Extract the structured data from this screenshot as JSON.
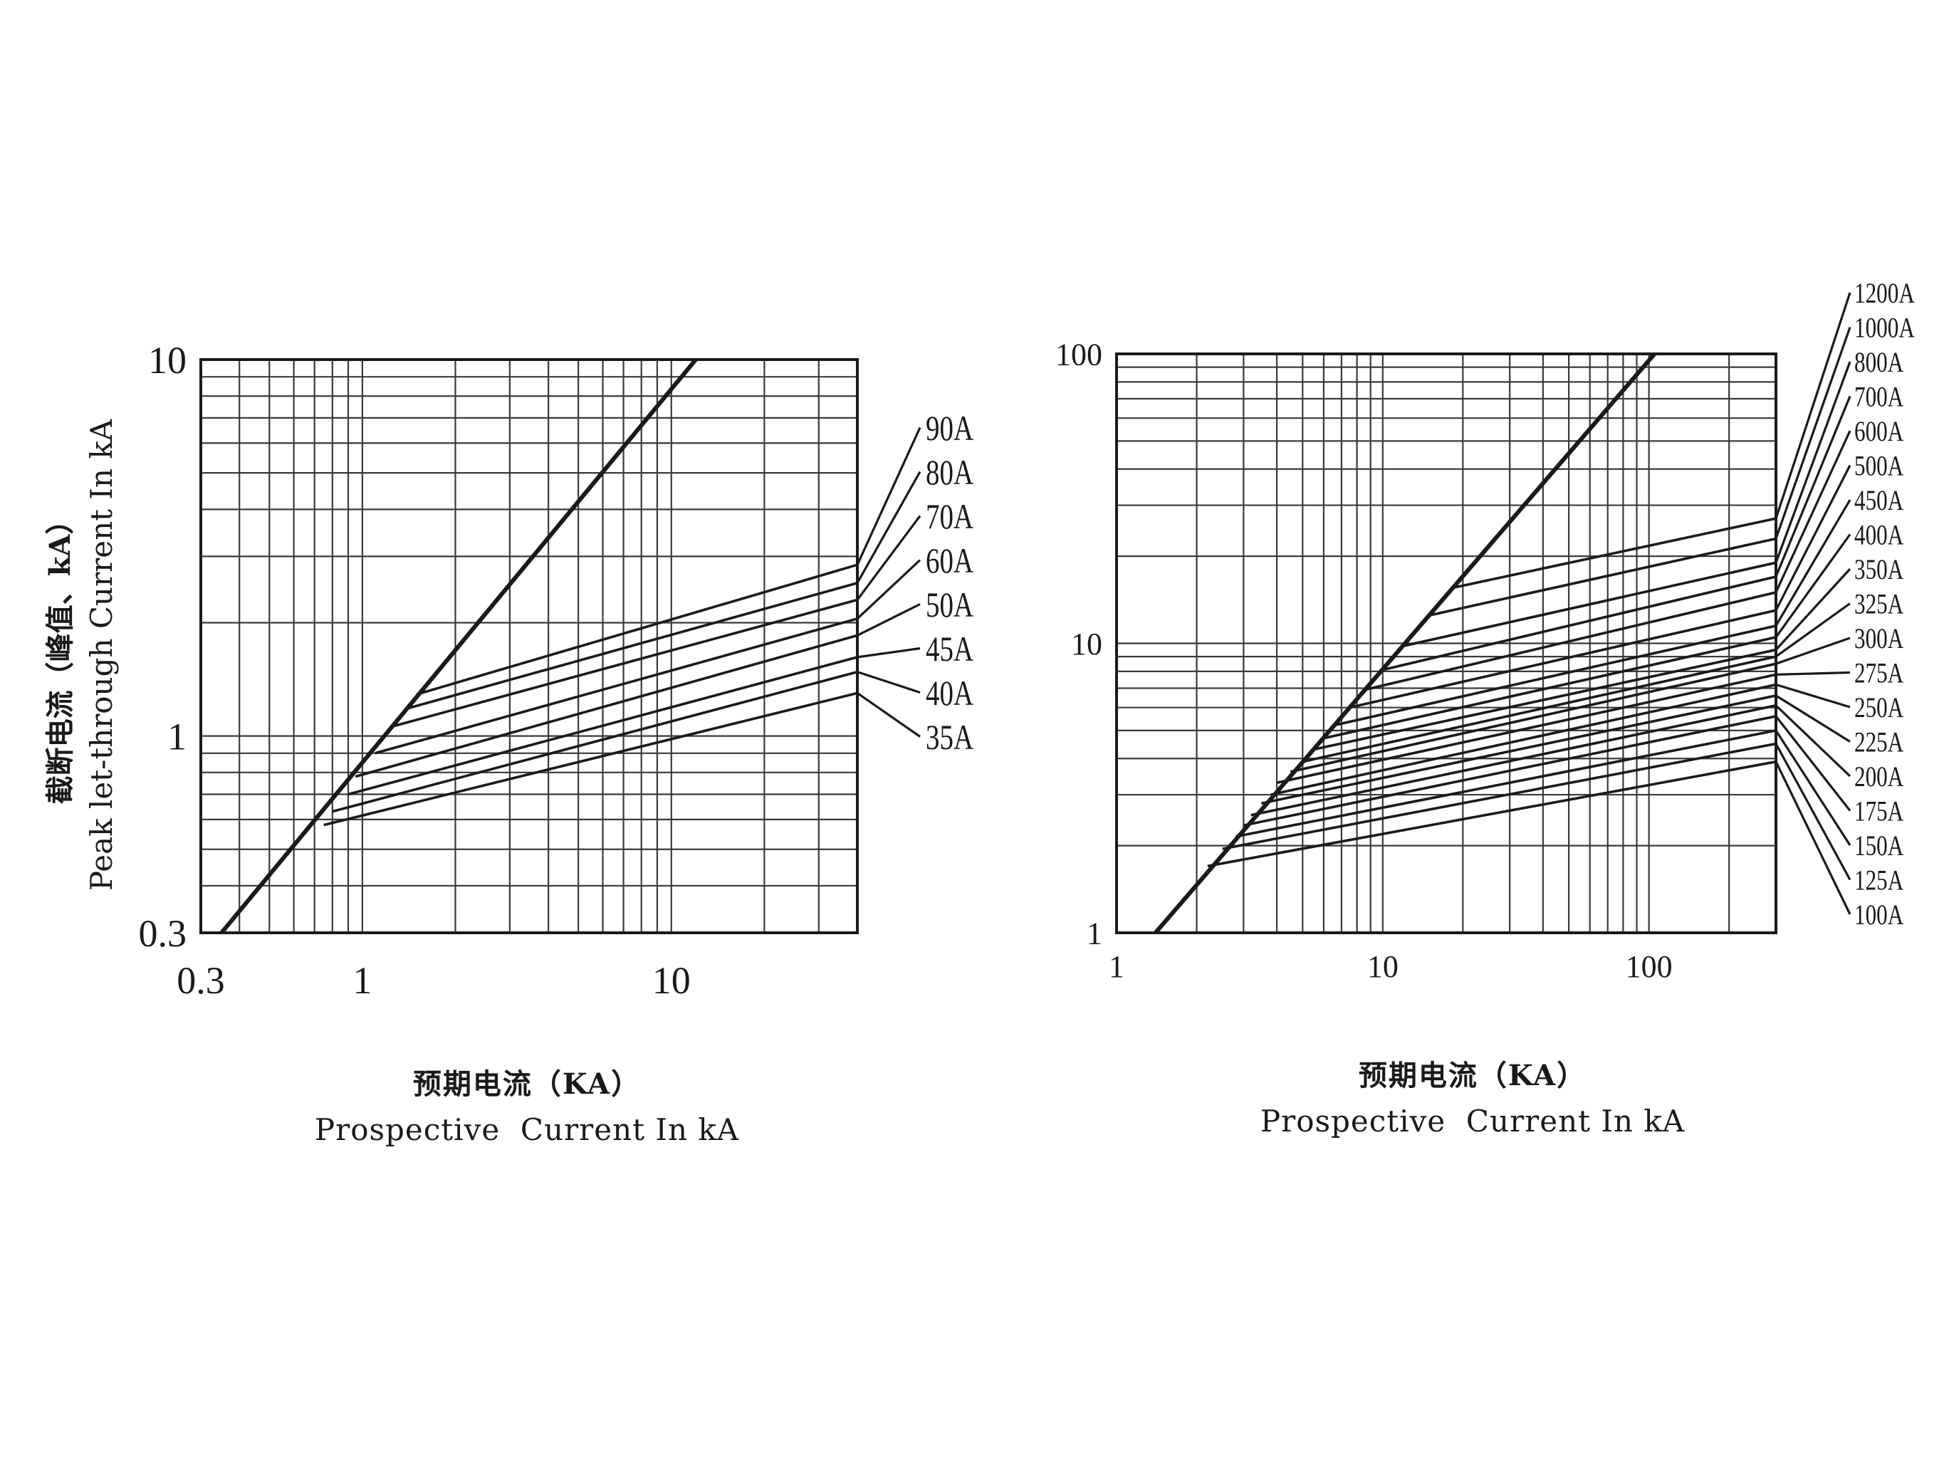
{
  "chart_data": [
    {
      "type": "line",
      "xscale": "log",
      "yscale": "log",
      "grid": true,
      "xlim": [
        0.3,
        40
      ],
      "ylim": [
        0.3,
        10
      ],
      "xticks": [
        "0.3",
        "1",
        "10"
      ],
      "yticks": [
        "0.3",
        "1",
        "10"
      ],
      "xlabel_cn": "预期电流（KA）",
      "xlabel": "Prospective  Current In kA",
      "ylabel_cn": "截断电流（峰值、kA）",
      "ylabel": "Peak let-through Current In kA",
      "reference_line": {
        "points": [
          [
            0.35,
            0.3
          ],
          [
            12,
            10
          ]
        ]
      },
      "series": [
        {
          "name": "90A",
          "points": [
            [
              1.5,
              1.29
            ],
            [
              40,
              2.85
            ]
          ]
        },
        {
          "name": "80A",
          "points": [
            [
              1.38,
              1.18
            ],
            [
              40,
              2.55
            ]
          ]
        },
        {
          "name": "70A",
          "points": [
            [
              1.25,
              1.06
            ],
            [
              40,
              2.3
            ]
          ]
        },
        {
          "name": "60A",
          "points": [
            [
              1.1,
              0.9
            ],
            [
              40,
              2.05
            ]
          ]
        },
        {
          "name": "50A",
          "points": [
            [
              0.95,
              0.78
            ],
            [
              40,
              1.85
            ]
          ]
        },
        {
          "name": "45A",
          "points": [
            [
              0.9,
              0.7
            ],
            [
              40,
              1.62
            ]
          ]
        },
        {
          "name": "40A",
          "points": [
            [
              0.8,
              0.63
            ],
            [
              40,
              1.48
            ]
          ]
        },
        {
          "name": "35A",
          "points": [
            [
              0.75,
              0.58
            ],
            [
              40,
              1.3
            ]
          ]
        }
      ]
    },
    {
      "type": "line",
      "xscale": "log",
      "yscale": "log",
      "grid": true,
      "xlim": [
        1,
        300
      ],
      "ylim": [
        1,
        100
      ],
      "xticks": [
        "1",
        "10",
        "100"
      ],
      "yticks": [
        "1",
        "10",
        "100"
      ],
      "xlabel_cn": "预期电流（KA）",
      "xlabel": "Prospective  Current In kA",
      "reference_line": {
        "points": [
          [
            1.4,
            1
          ],
          [
            105,
            100
          ]
        ]
      },
      "series": [
        {
          "name": "1200A",
          "points": [
            [
              18,
              15.5
            ],
            [
              300,
              27
            ]
          ]
        },
        {
          "name": "1000A",
          "points": [
            [
              15,
              12.5
            ],
            [
              300,
              23
            ]
          ]
        },
        {
          "name": "800A",
          "points": [
            [
              12,
              9.8
            ],
            [
              300,
              19
            ]
          ]
        },
        {
          "name": "700A",
          "points": [
            [
              10,
              8.1
            ],
            [
              300,
              17
            ]
          ]
        },
        {
          "name": "600A",
          "points": [
            [
              8.5,
              6.9
            ],
            [
              300,
              15
            ]
          ]
        },
        {
          "name": "500A",
          "points": [
            [
              7.5,
              6
            ],
            [
              300,
              13
            ]
          ]
        },
        {
          "name": "450A",
          "points": [
            [
              6.5,
              5.2
            ],
            [
              300,
              11.5
            ]
          ]
        },
        {
          "name": "400A",
          "points": [
            [
              6,
              4.7
            ],
            [
              300,
              10.5
            ]
          ]
        },
        {
          "name": "350A",
          "points": [
            [
              5.5,
              4.3
            ],
            [
              300,
              9.5
            ]
          ]
        },
        {
          "name": "325A",
          "points": [
            [
              5,
              3.9
            ],
            [
              300,
              9
            ]
          ]
        },
        {
          "name": "300A",
          "points": [
            [
              4.5,
              3.6
            ],
            [
              300,
              8.5
            ]
          ]
        },
        {
          "name": "275A",
          "points": [
            [
              4,
              3.3
            ],
            [
              300,
              7.8
            ]
          ]
        },
        {
          "name": "250A",
          "points": [
            [
              3.8,
              3
            ],
            [
              300,
              7.2
            ]
          ]
        },
        {
          "name": "225A",
          "points": [
            [
              3.5,
              2.8
            ],
            [
              300,
              6.6
            ]
          ]
        },
        {
          "name": "200A",
          "points": [
            [
              3.2,
              2.55
            ],
            [
              300,
              6.1
            ]
          ]
        },
        {
          "name": "175A",
          "points": [
            [
              3,
              2.35
            ],
            [
              300,
              5.6
            ]
          ]
        },
        {
          "name": "150A",
          "points": [
            [
              2.8,
              2.15
            ],
            [
              300,
              5
            ]
          ]
        },
        {
          "name": "125A",
          "points": [
            [
              2.5,
              1.95
            ],
            [
              300,
              4.5
            ]
          ]
        },
        {
          "name": "100A",
          "points": [
            [
              2.2,
              1.7
            ],
            [
              300,
              3.9
            ]
          ]
        }
      ]
    }
  ]
}
